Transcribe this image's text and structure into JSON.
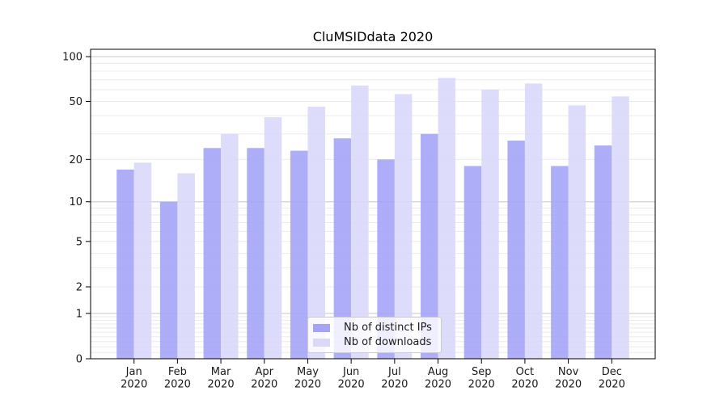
{
  "chart_data": {
    "type": "bar",
    "title": "CluMSIDdata 2020",
    "categories": [
      "Jan 2020",
      "Feb 2020",
      "Mar 2020",
      "Apr 2020",
      "May 2020",
      "Jun 2020",
      "Jul 2020",
      "Aug 2020",
      "Sep 2020",
      "Oct 2020",
      "Nov 2020",
      "Dec 2020"
    ],
    "series": [
      {
        "key": "distinct-ips",
        "name": "Nb of distinct IPs",
        "color": "#a5a4f7",
        "values": [
          17,
          10,
          24,
          24,
          23,
          28,
          20,
          30,
          18,
          27,
          18,
          25
        ]
      },
      {
        "key": "downloads",
        "name": "Nb of downloads",
        "color": "#d9d8fa",
        "values": [
          19,
          16,
          30,
          39,
          46,
          64,
          56,
          72,
          60,
          66,
          47,
          54
        ]
      }
    ],
    "yscale": "log1p",
    "yticks": [
      0,
      1,
      2,
      5,
      10,
      20,
      50,
      100
    ],
    "ylim": [
      0,
      112
    ],
    "xlabel": "",
    "ylabel": "",
    "grid": true,
    "legend_position": "lower center",
    "colors": {
      "major_gridline": "#c6c6c6",
      "minor_gridline": "#ebebeb",
      "axis_border": "#000000",
      "tick_text": "#1a1a1a"
    }
  }
}
